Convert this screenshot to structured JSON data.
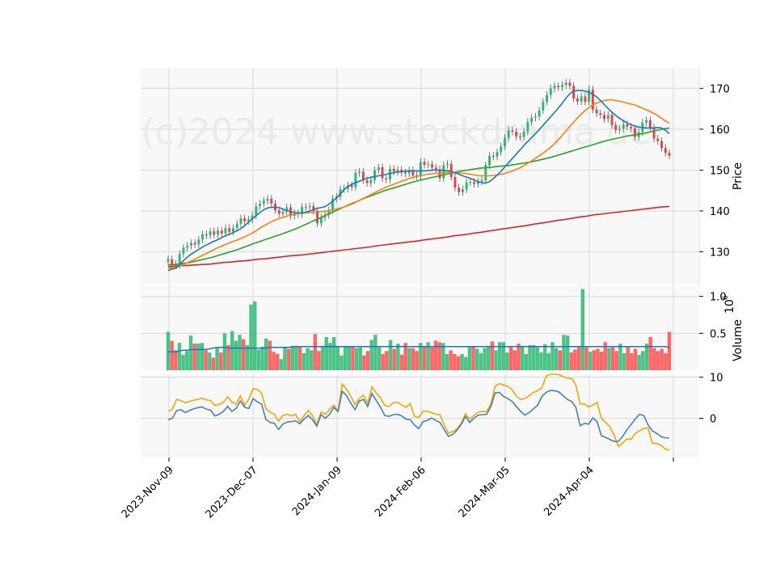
{
  "watermark": "(c)2024 www.stockdrama.de",
  "chart_data": [
    {
      "type": "candlestick",
      "panel": "price",
      "ylabel": "Price",
      "ylim": [
        122,
        175
      ],
      "yticks": [
        130,
        140,
        150,
        160,
        170
      ],
      "x_tick_labels": [
        "2023-Nov-09",
        "2023-Dec-07",
        "2024-Jan-09",
        "2024-Feb-06",
        "2024-Mar-05",
        "2024-Apr-04"
      ],
      "grid": true,
      "colors": {
        "up": "#2eb872",
        "down": "#e8414a",
        "ma_fast": "#1f77b4",
        "ma_mid": "#ff7f0e",
        "ma_slow": "#2ca02c",
        "ma_long": "#d62728"
      },
      "closes": [
        128.2,
        127.0,
        126.8,
        129.5,
        131.0,
        131.5,
        132.2,
        131.8,
        133.0,
        134.3,
        134.0,
        135.0,
        134.2,
        135.2,
        134.5,
        135.8,
        134.9,
        135.8,
        136.9,
        138.2,
        137.5,
        137.9,
        138.9,
        141.2,
        141.8,
        142.5,
        143.0,
        141.8,
        140.2,
        139.3,
        139.8,
        140.9,
        138.8,
        139.5,
        139.2,
        141.0,
        141.0,
        141.2,
        140.0,
        137.0,
        138.4,
        139.0,
        140.2,
        143.0,
        143.5,
        145.3,
        145.5,
        146.3,
        145.8,
        149.3,
        149.6,
        147.5,
        146.8,
        147.6,
        150.0,
        150.7,
        148.0,
        147.7,
        150.3,
        149.6,
        150.1,
        149.4,
        149.2,
        150.0,
        148.7,
        148.5,
        152.0,
        151.3,
        151.4,
        150.6,
        150.2,
        148.0,
        151.2,
        151.5,
        148.3,
        145.7,
        144.6,
        145.3,
        147.0,
        147.1,
        146.6,
        147.2,
        147.5,
        151.2,
        153.5,
        153.3,
        154.4,
        155.8,
        157.9,
        159.7,
        159.4,
        158.2,
        158.1,
        159.4,
        161.8,
        162.8,
        163.1,
        164.6,
        166.7,
        168.4,
        170.0,
        170.6,
        170.3,
        170.8,
        171.4,
        170.6,
        167.5,
        166.8,
        168.0,
        166.7,
        169.7,
        164.8,
        163.9,
        163.5,
        162.5,
        163.5,
        161.0,
        159.8,
        160.1,
        161.2,
        160.6,
        160.2,
        158.1,
        159.3,
        161.6,
        162.2,
        160.4,
        157.7,
        157.1,
        155.4,
        154.2,
        153.5
      ],
      "ma_fast": [
        125.4,
        125.8,
        126.0,
        127.0,
        128.0,
        128.9,
        129.6,
        130.2,
        130.8,
        131.4,
        131.9,
        132.4,
        132.8,
        133.3,
        133.8,
        134.2,
        134.6,
        135.1,
        135.6,
        136.3,
        137.2,
        138.1,
        138.9,
        139.7,
        140.4,
        140.8,
        140.9,
        140.9,
        140.7,
        140.3,
        140.0,
        139.7,
        139.6,
        139.5,
        139.6,
        139.9,
        140.2,
        140.6,
        140.8,
        141.0,
        141.6,
        142.3,
        143.2,
        144.2,
        145.3,
        146.1,
        146.6,
        147.0,
        147.4,
        147.8,
        148.1,
        148.3,
        148.5,
        148.7,
        148.9,
        149.1,
        149.3,
        149.5,
        149.6,
        149.7,
        149.8,
        149.8,
        149.8,
        149.8,
        149.8,
        149.9,
        150.0,
        150.0,
        150.0,
        149.9,
        149.8,
        149.5,
        149.2,
        148.8,
        148.4,
        148.1,
        147.7,
        147.3,
        147.0,
        146.8,
        147.1,
        147.8,
        148.7,
        149.7,
        150.8,
        151.9,
        153.0,
        154.1,
        155.2,
        156.3,
        157.3,
        158.3,
        159.3,
        160.4,
        161.5,
        162.6,
        163.7,
        164.8,
        166.0,
        167.3,
        168.5,
        169.3,
        169.5,
        169.5,
        169.3,
        169.0,
        168.5,
        167.8,
        166.9,
        165.8,
        164.8,
        163.9,
        163.1,
        162.4,
        161.8,
        161.3,
        160.9,
        160.6,
        160.4,
        160.3,
        160.3,
        160.3,
        160.4,
        160.3,
        159.8,
        158.9
      ],
      "ma_mid": [
        126.0,
        126.1,
        126.4,
        126.8,
        127.4,
        127.9,
        128.5,
        129.1,
        129.7,
        130.3,
        130.9,
        131.4,
        131.9,
        132.4,
        132.8,
        133.3,
        133.8,
        134.4,
        135.1,
        135.9,
        136.6,
        137.2,
        137.8,
        138.2,
        138.6,
        138.9,
        139.2,
        139.4,
        139.5,
        139.6,
        139.7,
        139.8,
        139.9,
        140.1,
        140.3,
        140.6,
        140.9,
        141.3,
        141.8,
        142.4,
        143.0,
        143.6,
        144.2,
        144.8,
        145.4,
        145.9,
        146.4,
        146.8,
        147.3,
        147.7,
        148.1,
        148.4,
        148.7,
        148.9,
        149.1,
        149.2,
        149.3,
        149.4,
        149.4,
        149.4,
        149.3,
        149.2,
        149.0,
        148.8,
        148.6,
        148.6,
        148.6,
        148.7,
        148.9,
        149.1,
        149.5,
        149.9,
        150.4,
        151.0,
        151.7,
        152.5,
        153.3,
        154.1,
        155.0,
        156.0,
        157.2,
        158.5,
        159.9,
        161.3,
        162.6,
        163.8,
        164.9,
        165.7,
        166.4,
        166.8,
        167.1,
        167.2,
        167.0,
        166.8,
        166.5,
        166.2,
        165.9,
        165.4,
        164.9,
        164.4,
        163.8,
        163.0,
        162.2,
        161.5
      ],
      "ma_slow": [
        126.8,
        126.9,
        127.0,
        127.2,
        127.4,
        127.7,
        128.0,
        128.3,
        128.6,
        129.0,
        129.4,
        129.8,
        130.2,
        130.6,
        131.1,
        131.6,
        132.1,
        132.5,
        133.0,
        133.4,
        133.9,
        134.3,
        134.8,
        135.3,
        135.8,
        136.4,
        137.0,
        137.6,
        138.2,
        138.8,
        139.4,
        140.0,
        140.6,
        141.2,
        141.8,
        142.3,
        142.9,
        143.4,
        143.9,
        144.4,
        144.9,
        145.3,
        145.7,
        146.1,
        146.5,
        146.9,
        147.3,
        147.6,
        147.9,
        148.2,
        148.5,
        148.8,
        149.1,
        149.4,
        149.7,
        149.9,
        150.1,
        150.3,
        150.5,
        150.6,
        150.7,
        150.9,
        151.0,
        151.1,
        151.3,
        151.5,
        151.7,
        151.9,
        152.2,
        152.5,
        152.8,
        153.1,
        153.5,
        153.9,
        154.3,
        154.7,
        155.1,
        155.5,
        155.9,
        156.3,
        156.7,
        157.1,
        157.4,
        157.7,
        158.0,
        158.3,
        158.5,
        158.7,
        158.9,
        159.2,
        159.5,
        159.8,
        160.1,
        160.3
      ],
      "ma_long": [
        126.4,
        126.5,
        126.6,
        126.7,
        126.8,
        126.9,
        127.0,
        127.2,
        127.4,
        127.5,
        127.7,
        127.8,
        128.0,
        128.2,
        128.3,
        128.5,
        128.7,
        128.9,
        129.1,
        129.2,
        129.4,
        129.6,
        129.8,
        130.0,
        130.2,
        130.4,
        130.6,
        130.8,
        131.0,
        131.2,
        131.5,
        131.7,
        131.9,
        132.1,
        132.3,
        132.5,
        132.7,
        133.0,
        133.2,
        133.4,
        133.6,
        133.9,
        134.1,
        134.3,
        134.6,
        134.8,
        135.1,
        135.3,
        135.6,
        135.8,
        136.1,
        136.3,
        136.6,
        136.9,
        137.1,
        137.4,
        137.7,
        137.9,
        138.2,
        138.5,
        138.7,
        139.0,
        139.2,
        139.4,
        139.6,
        139.8,
        140.0,
        140.2,
        140.4,
        140.6,
        140.8,
        141.0,
        141.1
      ]
    },
    {
      "type": "bar",
      "panel": "volume",
      "ylabel": "Volume",
      "yscale_label": "10^6",
      "ylim": [
        0,
        1.15
      ],
      "yticks": [
        0.5,
        1.0
      ],
      "grid": true,
      "volume": [
        0.52,
        0.4,
        0.27,
        0.37,
        0.21,
        0.26,
        0.47,
        0.36,
        0.36,
        0.37,
        0.27,
        0.24,
        0.17,
        0.3,
        0.24,
        0.5,
        0.34,
        0.53,
        0.4,
        0.48,
        0.42,
        0.34,
        0.89,
        0.93,
        0.28,
        0.32,
        0.43,
        0.4,
        0.25,
        0.22,
        0.15,
        0.32,
        0.29,
        0.33,
        0.33,
        0.32,
        0.23,
        0.3,
        0.27,
        0.49,
        0.26,
        0.33,
        0.45,
        0.37,
        0.45,
        0.33,
        0.2,
        0.33,
        0.32,
        0.33,
        0.3,
        0.31,
        0.2,
        0.26,
        0.41,
        0.48,
        0.31,
        0.22,
        0.26,
        0.41,
        0.29,
        0.36,
        0.21,
        0.37,
        0.3,
        0.3,
        0.26,
        0.37,
        0.33,
        0.38,
        0.31,
        0.4,
        0.38,
        0.37,
        0.22,
        0.27,
        0.22,
        0.19,
        0.22,
        0.18,
        0.31,
        0.32,
        0.29,
        0.23,
        0.3,
        0.32,
        0.39,
        0.27,
        0.38,
        0.38,
        0.24,
        0.32,
        0.27,
        0.36,
        0.33,
        0.22,
        0.34,
        0.34,
        0.31,
        0.24,
        0.35,
        0.23,
        0.38,
        0.3,
        0.27,
        0.48,
        0.47,
        0.24,
        0.28,
        0.31,
        1.1,
        0.31,
        0.25,
        0.27,
        0.29,
        0.25,
        0.38,
        0.3,
        0.31,
        0.26,
        0.36,
        0.23,
        0.31,
        0.23,
        0.29,
        0.21,
        0.26,
        0.36,
        0.45,
        0.3,
        0.26,
        0.29,
        0.23,
        0.52
      ],
      "volume_ma": [
        0.25,
        0.25,
        0.25,
        0.26,
        0.27,
        0.27,
        0.28,
        0.28,
        0.28,
        0.28,
        0.28,
        0.29,
        0.3,
        0.31,
        0.31,
        0.31,
        0.3,
        0.3,
        0.3,
        0.3,
        0.3,
        0.3,
        0.3,
        0.3,
        0.3,
        0.3,
        0.3,
        0.31,
        0.31,
        0.31,
        0.31,
        0.31,
        0.31,
        0.32,
        0.32,
        0.32,
        0.32,
        0.32,
        0.32,
        0.32,
        0.32,
        0.32,
        0.32,
        0.32,
        0.32,
        0.32,
        0.32,
        0.32,
        0.32,
        0.32,
        0.32,
        0.32,
        0.32,
        0.32,
        0.32,
        0.32,
        0.32,
        0.32,
        0.32,
        0.32,
        0.32,
        0.32,
        0.32,
        0.32,
        0.32,
        0.32,
        0.32,
        0.32,
        0.32,
        0.32,
        0.32,
        0.32,
        0.32,
        0.32,
        0.32,
        0.32,
        0.32,
        0.32,
        0.32,
        0.32,
        0.32,
        0.32,
        0.32,
        0.32,
        0.32,
        0.32,
        0.32,
        0.32,
        0.32,
        0.32,
        0.32,
        0.32,
        0.32,
        0.32,
        0.32,
        0.32,
        0.32,
        0.32,
        0.32,
        0.32,
        0.32,
        0.32,
        0.32,
        0.32,
        0.32,
        0.32,
        0.32,
        0.32,
        0.32,
        0.32,
        0.32,
        0.32,
        0.32,
        0.32,
        0.32,
        0.32,
        0.32,
        0.32,
        0.32,
        0.32,
        0.32,
        0.32,
        0.32,
        0.32,
        0.32,
        0.32,
        0.32,
        0.32,
        0.32,
        0.32,
        0.32,
        0.32,
        0.32,
        0.31
      ]
    },
    {
      "type": "line",
      "panel": "oscillator",
      "ylim": [
        -9.5,
        10.5
      ],
      "yticks": [
        0,
        10
      ],
      "grid": true,
      "series": [
        {
          "color": "#f5a40a",
          "values": [
            1.8,
            2.2,
            4.6,
            4.3,
            3.8,
            4.1,
            4.4,
            4.6,
            4.9,
            4.5,
            4.3,
            3.1,
            3.4,
            3.9,
            5.2,
            4.0,
            3.4,
            5.4,
            3.2,
            4.6,
            7.2,
            7.0,
            6.1,
            2.4,
            1.5,
            1.0,
            -0.7,
            0.7,
            1.0,
            0.6,
            1.0,
            -0.8,
            0.6,
            1.9,
            0.7,
            -1.6,
            1.5,
            1.0,
            2.2,
            3.2,
            1.8,
            8.3,
            7.1,
            5.4,
            3.3,
            4.8,
            5.6,
            3.7,
            7.6,
            6.1,
            5.0,
            3.1,
            2.9,
            3.8,
            3.9,
            3.2,
            2.7,
            3.6,
            0.5,
            0.2,
            1.7,
            1.8,
            1.4,
            1.0,
            0.9,
            -1.6,
            -3.6,
            -3.2,
            -2.6,
            -1.2,
            1.1,
            -0.2,
            0.7,
            1.5,
            1.7,
            1.7,
            3.6,
            7.8,
            8.4,
            8.1,
            7.8,
            6.9,
            5.4,
            4.6,
            4.8,
            5.5,
            6.3,
            6.7,
            7.4,
            10.2,
            10.7,
            10.7,
            10.6,
            10.1,
            9.8,
            9.7,
            8.1,
            3.5,
            3.5,
            2.8,
            3.2,
            3.9,
            0.0,
            -1.0,
            -2.0,
            -4.0,
            -6.8,
            -6.0,
            -5.0,
            -5.1,
            -3.6,
            -3.0,
            -2.4,
            -2.3,
            -6.0,
            -6.1,
            -6.5,
            -7.4,
            -7.7
          ]
        },
        {
          "color": "#4682b4",
          "values": [
            -0.3,
            0.0,
            1.9,
            2.1,
            1.4,
            1.9,
            2.3,
            2.6,
            2.8,
            2.2,
            2.0,
            0.6,
            1.0,
            1.7,
            2.9,
            1.7,
            2.4,
            4.2,
            2.7,
            2.4,
            4.8,
            4.0,
            3.5,
            -0.2,
            -1.0,
            -1.2,
            -2.7,
            -1.4,
            -0.9,
            -0.8,
            -0.6,
            -1.3,
            -0.2,
            0.7,
            -0.3,
            -1.9,
            0.9,
            0.0,
            1.0,
            2.7,
            1.6,
            6.6,
            5.5,
            3.7,
            2.1,
            4.2,
            4.6,
            2.9,
            6.0,
            4.3,
            2.7,
            0.7,
            0.5,
            0.9,
            1.0,
            0.6,
            -0.2,
            -0.3,
            -1.6,
            -2.5,
            -0.8,
            -0.5,
            0.1,
            -0.5,
            -1.0,
            -2.7,
            -4.4,
            -3.9,
            -2.9,
            -1.5,
            0.5,
            -1.0,
            0.0,
            0.8,
            0.9,
            1.0,
            2.9,
            6.2,
            6.3,
            5.3,
            4.8,
            4.1,
            2.9,
            1.7,
            0.8,
            1.4,
            2.3,
            3.2,
            5.3,
            6.3,
            6.8,
            6.7,
            6.4,
            5.5,
            4.6,
            4.1,
            2.7,
            -1.8,
            -1.2,
            -1.4,
            0.1,
            -0.8,
            -4.2,
            -4.6,
            -5.1,
            -5.6,
            -5.6,
            -4.4,
            -2.8,
            -1.5,
            -0.1,
            1.0,
            0.7,
            -1.6,
            -3.0,
            -3.6,
            -4.4,
            -4.7,
            -4.8
          ]
        }
      ]
    }
  ]
}
